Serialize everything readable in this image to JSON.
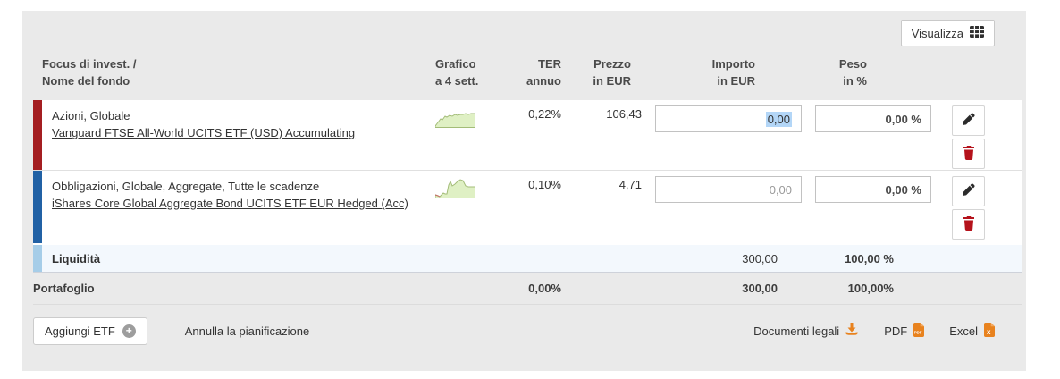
{
  "toolbar": {
    "visualizza_label": "Visualizza"
  },
  "table": {
    "headers": {
      "fund": "Focus di invest. /\nNome del fondo",
      "chart": "Grafico\na 4 sett.",
      "ter": "TER\nannuo",
      "price": "Prezzo\nin EUR",
      "amount": "Importo\nin EUR",
      "weight": "Peso\nin %"
    },
    "rows": [
      {
        "focus": "Azioni, Globale",
        "name": "Vanguard FTSE All-World UCITS ETF (USD) Accumulating",
        "bar_color": "#a41e21",
        "ter": "0,22%",
        "price": "106,43",
        "amount_value": "0,00",
        "amount_selected": true,
        "weight_value": "0,00 %",
        "sparkline": {
          "points": [
            [
              0,
              21
            ],
            [
              3,
              17
            ],
            [
              6,
              13
            ],
            [
              8,
              14
            ],
            [
              11,
              10
            ],
            [
              13,
              11
            ],
            [
              16,
              9
            ],
            [
              19,
              10
            ],
            [
              22,
              8
            ],
            [
              25,
              9
            ],
            [
              28,
              8
            ],
            [
              31,
              8
            ],
            [
              34,
              7
            ],
            [
              37,
              8
            ],
            [
              40,
              7
            ],
            [
              45,
              7
            ]
          ],
          "neg_end_index": 0
        }
      },
      {
        "focus": "Obbligazioni, Globale, Aggregate, Tutte le scadenze",
        "name": "iShares Core Global Aggregate Bond UCITS ETF EUR Hedged (Acc)",
        "bar_color": "#2161a5",
        "ter": "0,10%",
        "price": "4,71",
        "amount_value": "0,00",
        "amount_selected": false,
        "weight_value": "0,00 %",
        "sparkline": {
          "points": [
            [
              0,
              19
            ],
            [
              3,
              20
            ],
            [
              5,
              21
            ],
            [
              7,
              19
            ],
            [
              9,
              17
            ],
            [
              11,
              18
            ],
            [
              13,
              18
            ],
            [
              15,
              8
            ],
            [
              17,
              4
            ],
            [
              19,
              9
            ],
            [
              22,
              7
            ],
            [
              25,
              4
            ],
            [
              28,
              2
            ],
            [
              31,
              3
            ],
            [
              34,
              9
            ],
            [
              37,
              10
            ],
            [
              45,
              10
            ]
          ],
          "neg_end_index": 2
        }
      }
    ],
    "liquidity": {
      "label": "Liquidità",
      "bar_color": "#a6cde8",
      "amount": "300,00",
      "weight": "100,00 %"
    },
    "total": {
      "label": "Portafoglio",
      "ter": "0,00%",
      "amount": "300,00",
      "weight": "100,00%"
    }
  },
  "footer": {
    "add_etf_label": "Aggiungi ETF",
    "cancel_label": "Annulla la pianificazione",
    "legal_docs_label": "Documenti legali",
    "pdf_label": "PDF",
    "excel_label": "Excel"
  },
  "colors": {
    "panel_bg": "#eaeaea",
    "liquidity_row_bg": "#f3f8fd",
    "selection_highlight": "#b3d6f7",
    "trash_red": "#b5121b",
    "export_orange": "#e8821e",
    "spark_fill": "#dff0c4",
    "spark_stroke": "#a3bc78",
    "spark_neg": "#c4756a"
  }
}
